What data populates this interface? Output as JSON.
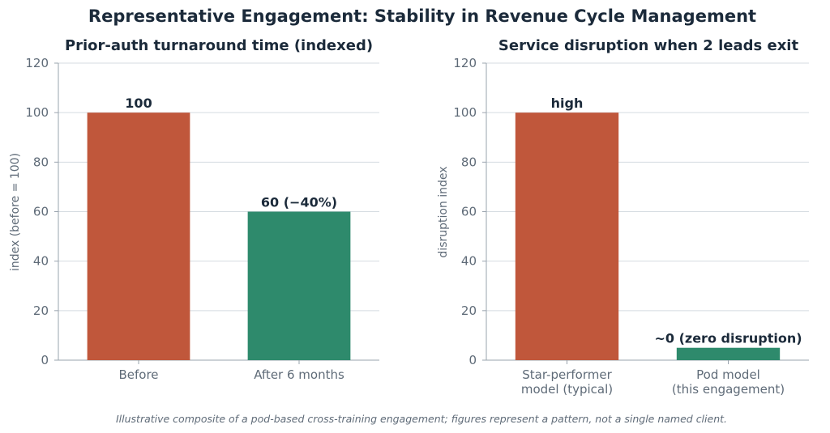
{
  "figure": {
    "title": "Representative Engagement: Stability in Revenue Cycle Management",
    "footnote": "Illustrative composite of a pod-based cross-training engagement; figures represent a pattern, not a single named client."
  },
  "chart_data": [
    {
      "type": "bar",
      "title": "Prior-auth turnaround time (indexed)",
      "xlabel": "",
      "ylabel": "index (before = 100)",
      "categories": [
        [
          "Before"
        ],
        [
          "After 6 months"
        ]
      ],
      "values": [
        100,
        60
      ],
      "data_labels": [
        "100",
        "60  (−40%)"
      ],
      "colors": [
        "#c0573b",
        "#2e8a6c"
      ],
      "ylim": [
        0,
        120
      ],
      "yticks": [
        0,
        20,
        40,
        60,
        80,
        100,
        120
      ],
      "grid": true,
      "legend": "none"
    },
    {
      "type": "bar",
      "title": "Service disruption when 2 leads exit",
      "xlabel": "",
      "ylabel": "disruption index",
      "categories": [
        [
          "Star-performer",
          "model (typical)"
        ],
        [
          "Pod model",
          "(this engagement)"
        ]
      ],
      "values": [
        100,
        5
      ],
      "data_labels": [
        "high",
        "~0  (zero disruption)"
      ],
      "colors": [
        "#c0573b",
        "#2e8a6c"
      ],
      "ylim": [
        0,
        120
      ],
      "yticks": [
        0,
        20,
        40,
        60,
        80,
        100,
        120
      ],
      "grid": true,
      "legend": "none"
    }
  ]
}
